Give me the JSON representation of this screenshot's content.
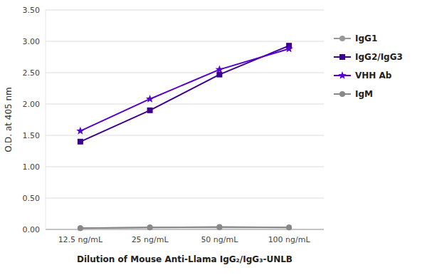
{
  "chart_data": {
    "type": "line",
    "categories": [
      "12.5 ng/mL",
      "25 ng/mL",
      "50 ng/mL",
      "100 ng/mL"
    ],
    "series": [
      {
        "name": "IgG1",
        "values": [
          0.02,
          0.03,
          0.03,
          0.03
        ],
        "color": "#999999",
        "marker": "circle",
        "line_style": "solid"
      },
      {
        "name": "IgG2/IgG3",
        "values": [
          1.4,
          1.9,
          2.47,
          2.93
        ],
        "color": "#3B0090",
        "marker": "square",
        "line_style": "solid"
      },
      {
        "name": "VHH Ab",
        "values": [
          1.57,
          2.08,
          2.55,
          2.88
        ],
        "color": "#5500CC",
        "marker": "star",
        "line_style": "solid"
      },
      {
        "name": "IgM",
        "values": [
          0.02,
          0.03,
          0.04,
          0.03
        ],
        "color": "#888888",
        "marker": "circle",
        "line_style": "solid"
      }
    ],
    "y_label": "O.D. at 405 nm",
    "x_label": "Dilution of Mouse Anti-Llama IgG₂/IgG₃-UNLB",
    "ylim": [
      0.0,
      3.5
    ],
    "yticks": [
      {
        "value": 0.0,
        "label": "0.00"
      },
      {
        "value": 0.5,
        "label": "0.50"
      },
      {
        "value": 1.0,
        "label": "1.00"
      },
      {
        "value": 1.5,
        "label": "1.50"
      },
      {
        "value": 2.0,
        "label": "2.00"
      },
      {
        "value": 2.5,
        "label": "2.50"
      },
      {
        "value": 3.0,
        "label": "3.00"
      },
      {
        "value": 3.5,
        "label": "3.50"
      }
    ],
    "grid": true,
    "legend": "right"
  }
}
